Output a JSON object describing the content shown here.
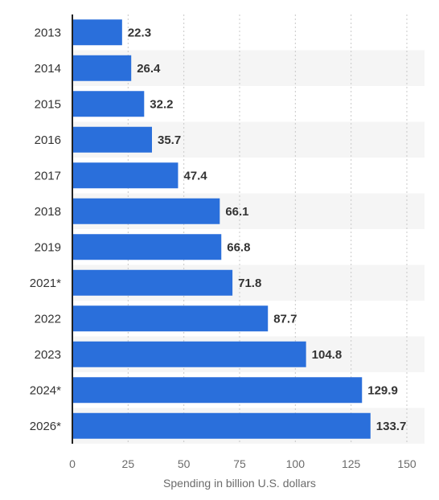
{
  "chart_data": {
    "type": "bar",
    "orientation": "horizontal",
    "categories": [
      "2013",
      "2014",
      "2015",
      "2016",
      "2017",
      "2018",
      "2019",
      "2021*",
      "2022",
      "2023",
      "2024*",
      "2026*"
    ],
    "values": [
      22.3,
      26.4,
      32.2,
      35.7,
      47.4,
      66.1,
      66.8,
      71.8,
      87.7,
      104.8,
      129.9,
      133.7
    ],
    "value_labels": [
      "22.3",
      "26.4",
      "32.2",
      "35.7",
      "47.4",
      "66.1",
      "66.8",
      "71.8",
      "87.7",
      "104.8",
      "129.9",
      "133.7"
    ],
    "xlabel": "Spending in billion U.S. dollars",
    "xlim": [
      0,
      150
    ],
    "xticks": [
      "0",
      "25",
      "50",
      "75",
      "100",
      "125",
      "150"
    ],
    "grid": true,
    "colors": {
      "bar": "#2a6fdb",
      "band": "#f5f5f5",
      "grid": "#c8c8c8",
      "axis": "#222222"
    }
  }
}
